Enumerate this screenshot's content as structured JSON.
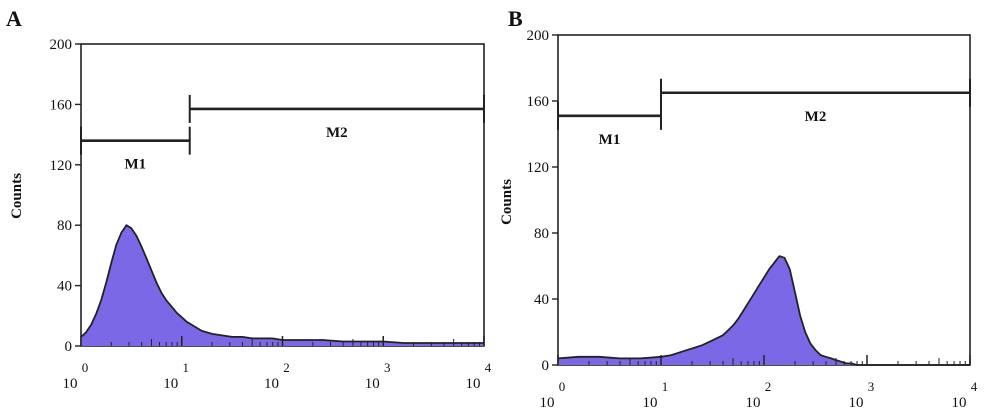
{
  "chart_data": [
    {
      "type": "area",
      "panel_label": "A",
      "ylabel": "Counts",
      "xscale": "log",
      "xlim": [
        1,
        10000
      ],
      "ylim": [
        0,
        200
      ],
      "yticks": [
        0,
        40,
        80,
        120,
        160,
        200
      ],
      "xticks": [
        {
          "base": "10",
          "exp": "0",
          "value": 1
        },
        {
          "base": "10",
          "exp": "1",
          "value": 10
        },
        {
          "base": "10",
          "exp": "2",
          "value": 100
        },
        {
          "base": "10",
          "exp": "3",
          "value": 1000
        },
        {
          "base": "10",
          "exp": "4",
          "value": 10000
        }
      ],
      "fill_color": "#7b68e6",
      "outline_color": "#222222",
      "grid": false,
      "series": [
        {
          "x": [
            1.0,
            1.12,
            1.26,
            1.41,
            1.58,
            1.78,
            2.0,
            2.24,
            2.51,
            2.82,
            3.16,
            3.55,
            3.98,
            4.47,
            5.01,
            5.62,
            6.31,
            7.08,
            7.94,
            8.91,
            10,
            11.2,
            12.6,
            14.1,
            15.8,
            17.8,
            20,
            25.1,
            31.6,
            39.8,
            50.1,
            63.1,
            79.4,
            100,
            158,
            251,
            398,
            631,
            1000,
            1585,
            2512,
            3981,
            6310,
            10000
          ],
          "y": [
            6,
            9,
            14,
            21,
            30,
            42,
            55,
            67,
            75,
            80,
            78,
            73,
            66,
            58,
            50,
            42,
            35,
            30,
            26,
            22,
            19,
            16,
            14,
            12,
            10,
            9,
            8,
            7,
            6,
            6,
            5,
            5,
            5,
            4,
            4,
            4,
            3,
            3,
            3,
            2,
            2,
            2,
            2,
            2
          ]
        }
      ],
      "gates": [
        {
          "label": "M1",
          "x_start": 1,
          "x_end": 12,
          "y": 136
        },
        {
          "label": "M2",
          "x_start": 12,
          "x_end": 10000,
          "y": 157
        }
      ]
    },
    {
      "type": "area",
      "panel_label": "B",
      "ylabel": "Counts",
      "xscale": "log",
      "xlim": [
        1,
        10000
      ],
      "ylim": [
        0,
        200
      ],
      "yticks": [
        0,
        40,
        80,
        120,
        160,
        200
      ],
      "xticks": [
        {
          "base": "10",
          "exp": "0",
          "value": 1
        },
        {
          "base": "10",
          "exp": "1",
          "value": 10
        },
        {
          "base": "10",
          "exp": "2",
          "value": 100
        },
        {
          "base": "10",
          "exp": "3",
          "value": 1000
        },
        {
          "base": "10",
          "exp": "4",
          "value": 10000
        }
      ],
      "fill_color": "#7b68e6",
      "outline_color": "#222222",
      "grid": false,
      "series": [
        {
          "x": [
            1.0,
            1.58,
            2.51,
            3.98,
            6.31,
            10,
            12.6,
            15.8,
            20,
            25.1,
            31.6,
            39.8,
            44.7,
            50.1,
            56.2,
            63.1,
            70.8,
            79.4,
            89.1,
            100,
            112,
            126,
            141,
            158,
            178,
            200,
            224,
            251,
            282,
            316,
            355,
            398,
            447,
            501,
            562,
            631,
            708,
            794,
            1000,
            1585,
            2512,
            3981,
            6310,
            10000
          ],
          "y": [
            4,
            5,
            5,
            4,
            4,
            5,
            6,
            8,
            10,
            12,
            15,
            18,
            21,
            24,
            28,
            33,
            38,
            43,
            48,
            53,
            58,
            62,
            66,
            65,
            58,
            44,
            30,
            20,
            13,
            9,
            6,
            5,
            4,
            3,
            2,
            1,
            1,
            0,
            0,
            0,
            0,
            0,
            0,
            0
          ]
        }
      ],
      "gates": [
        {
          "label": "M1",
          "x_start": 1,
          "x_end": 10,
          "y": 151
        },
        {
          "label": "M2",
          "x_start": 10,
          "x_end": 10000,
          "y": 165
        }
      ]
    }
  ]
}
